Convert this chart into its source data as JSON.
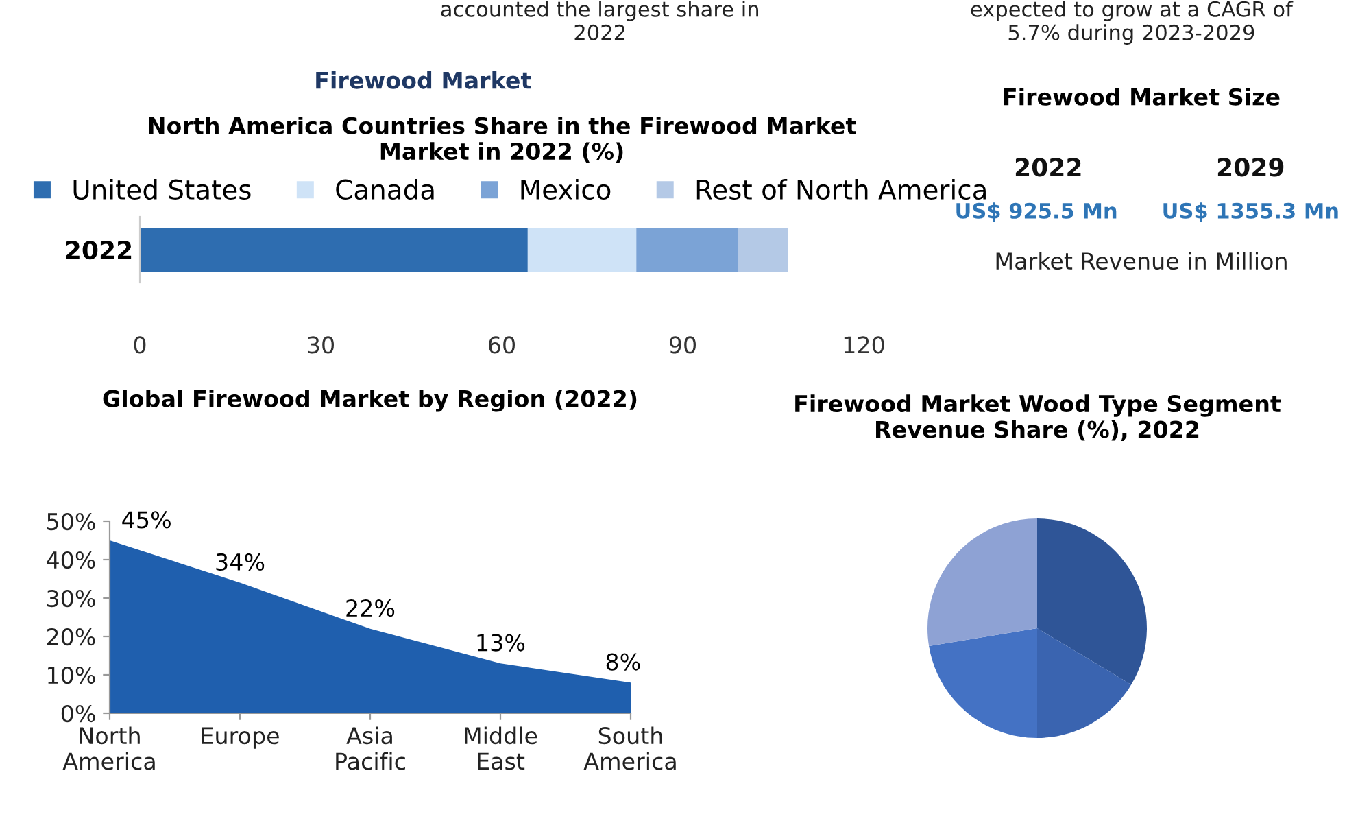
{
  "chart_data": [
    {
      "type": "other",
      "annotations": [
        "accounted the largest share in 2022",
        "expected to grow at a CAGR of 5.7% during 2023-2029",
        "Firewood Market"
      ]
    },
    {
      "type": "bar",
      "orientation": "horizontal",
      "stacked": true,
      "title": "North America Countries Share in the Firewood Market Market in 2022 (%)",
      "categories": [
        "2022"
      ],
      "legend": "top",
      "series": [
        {
          "name": "United States",
          "color": "#2e6db0",
          "values": [
            64.3
          ]
        },
        {
          "name": "Canada",
          "color": "#cfe3f7",
          "values": [
            18
          ]
        },
        {
          "name": "Mexico",
          "color": "#7ba3d6",
          "values": [
            16.8
          ]
        },
        {
          "name": "Rest of North America",
          "color": "#b4c9e6",
          "values": [
            8.4
          ]
        }
      ],
      "xlim": [
        0,
        120
      ],
      "xticks": [
        0,
        30,
        60,
        90,
        120
      ],
      "grid": false
    },
    {
      "type": "other",
      "title": "Firewood Market Size",
      "annotations": [
        "2022",
        "2029",
        "US$ 925.5 Mn",
        "US$ 1355.3 Mn",
        "Market Revenue in Million"
      ]
    },
    {
      "type": "area",
      "title": "Global Firewood Market by Region (2022)",
      "categories": [
        "North America",
        "Europe",
        "Asia Pacific",
        "Middle East",
        "South America"
      ],
      "series": [
        {
          "color": "#1f5fae",
          "values": [
            45,
            34,
            22,
            13,
            8
          ],
          "value_labels": [
            "45%",
            "34%",
            "22%",
            "13%",
            "8%"
          ]
        }
      ],
      "ylim": [
        0,
        50
      ],
      "yticks": [
        {
          "value": 0,
          "label": "0%"
        },
        {
          "value": 10,
          "label": "10%"
        },
        {
          "value": 20,
          "label": "20%"
        },
        {
          "value": 30,
          "label": "30%"
        },
        {
          "value": 40,
          "label": "40%"
        },
        {
          "value": 50,
          "label": "50%"
        }
      ],
      "grid": false,
      "legend": false
    },
    {
      "type": "pie",
      "title": "Firewood Market Wood Type Segment Revenue Share (%), 2022",
      "categories": [
        null,
        null,
        null,
        null
      ],
      "values": [
        33.6,
        16.4,
        22.4,
        27.6
      ],
      "colors": [
        "#2f5597",
        "#3a64b0",
        "#4472c4",
        "#8ea2d4"
      ],
      "legend": false
    }
  ]
}
